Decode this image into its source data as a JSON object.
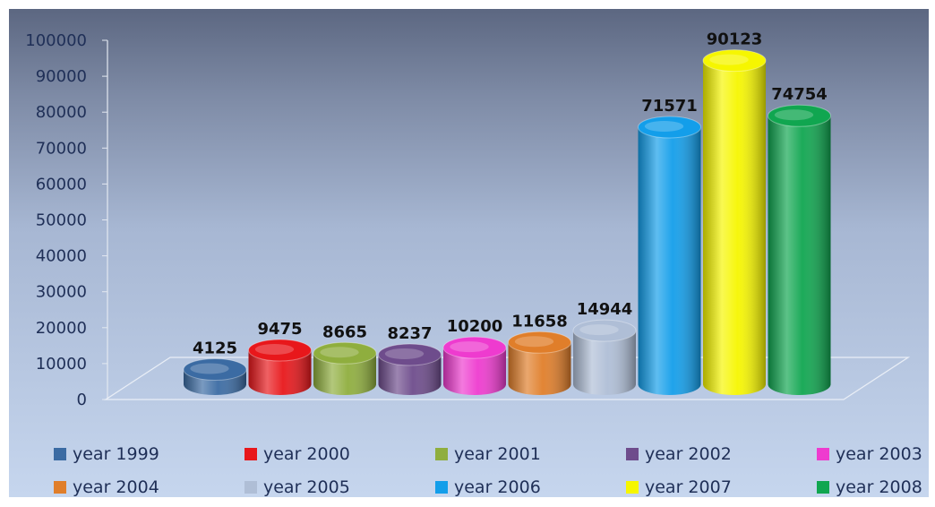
{
  "chart_data": {
    "type": "bar",
    "title": "",
    "xlabel": "",
    "ylabel": "",
    "ylim": [
      0,
      100000
    ],
    "yticks": [
      0,
      10000,
      20000,
      30000,
      40000,
      50000,
      60000,
      70000,
      80000,
      90000,
      100000
    ],
    "grid": false,
    "legend_position": "bottom",
    "series": [
      {
        "name": "year 1999",
        "value": 4125,
        "label": "4125",
        "color": "#3B6BA3"
      },
      {
        "name": "year 2000",
        "value": 9475,
        "label": "9475",
        "color": "#E8171B"
      },
      {
        "name": "year 2001",
        "value": 8665,
        "label": "8665",
        "color": "#8FAE3E"
      },
      {
        "name": "year 2002",
        "value": 8237,
        "label": "8237",
        "color": "#6E4C8C"
      },
      {
        "name": "year 2003",
        "value": 10200,
        "label": "10200",
        "color": "#EE3BCF"
      },
      {
        "name": "year 2004",
        "value": 11658,
        "label": "11658",
        "color": "#E07E2A"
      },
      {
        "name": "year 2005",
        "value": 14944,
        "label": "14944",
        "color": "#AFBED6"
      },
      {
        "name": "year 2006",
        "value": 71571,
        "label": "71571",
        "color": "#139EEA"
      },
      {
        "name": "year 2007",
        "value": 90123,
        "label": "90123",
        "color": "#F6F600"
      },
      {
        "name": "year 2008",
        "value": 74754,
        "label": "74754",
        "color": "#10A650"
      }
    ]
  }
}
